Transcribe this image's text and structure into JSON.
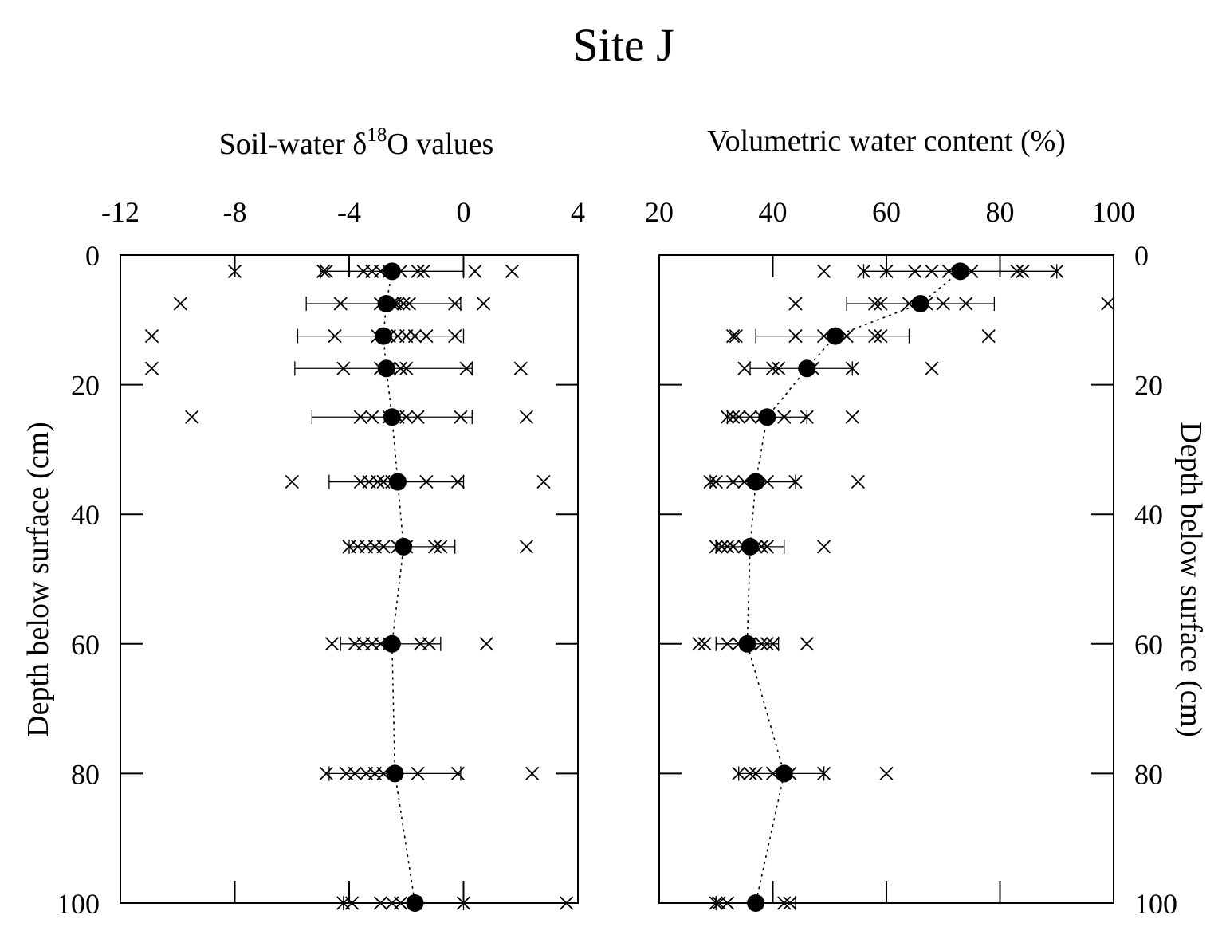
{
  "figure_title": "Site J",
  "chart_data": [
    {
      "type": "scatter",
      "title": "Soil-water δ18O values",
      "xlabel": "Soil-water δ18O values",
      "ylabel": "Depth below surface (cm)",
      "xlim": [
        -12,
        4
      ],
      "ylim": [
        0,
        100
      ],
      "y_inverted": true,
      "x_ticks": [
        "-12",
        "-8",
        "-4",
        "0",
        "4"
      ],
      "y_ticks": [
        "0",
        "20",
        "40",
        "60",
        "80",
        "100"
      ],
      "y_axis_side": "left",
      "depths": [
        2.5,
        7.5,
        12.5,
        17.5,
        25,
        35,
        45,
        60,
        80,
        100
      ],
      "individual_samples": [
        [
          -8.0,
          -4.9,
          -4.8,
          -3.5,
          -3.2,
          -2.9,
          -2.6,
          -2.2,
          -1.6,
          -1.4,
          0.4,
          1.7
        ],
        [
          -9.9,
          -4.3,
          -2.9,
          -2.7,
          -2.5,
          -2.4,
          -2.3,
          -2.1,
          -1.9,
          -0.3,
          0.7
        ],
        [
          -10.9,
          -4.5,
          -3.0,
          -2.6,
          -2.3,
          -2.0,
          -1.7,
          -1.3,
          -0.3
        ],
        [
          -10.9,
          -4.2,
          -2.9,
          -2.6,
          -2.2,
          -2.0,
          0.1,
          2.0
        ],
        [
          -9.5,
          -3.6,
          -3.2,
          -2.6,
          -2.3,
          -2.0,
          -1.6,
          -0.1,
          2.2
        ],
        [
          -6.0,
          -3.6,
          -3.3,
          -3.0,
          -2.8,
          -2.5,
          -1.3,
          -0.2,
          2.8
        ],
        [
          -4.0,
          -3.7,
          -3.4,
          -3.1,
          -2.8,
          -2.3,
          -2.0,
          -1.0,
          -0.8,
          2.2
        ],
        [
          -4.6,
          -3.8,
          -3.5,
          -3.2,
          -2.9,
          -2.6,
          -1.5,
          -1.2,
          0.8
        ],
        [
          -4.8,
          -4.1,
          -3.8,
          -3.4,
          -3.1,
          -2.8,
          -2.4,
          -1.6,
          -0.2,
          2.4
        ],
        [
          -4.2,
          -3.9,
          -2.9,
          -2.5,
          -2.2,
          -1.7,
          0.0,
          3.6
        ]
      ],
      "mean": [
        -2.5,
        -2.7,
        -2.8,
        -2.7,
        -2.5,
        -2.3,
        -2.1,
        -2.5,
        -2.4,
        -1.7
      ],
      "error_low": [
        -5.0,
        -5.5,
        -5.8,
        -5.9,
        -5.3,
        -4.7,
        -4.0,
        -4.3,
        -4.7,
        -4.2
      ],
      "error_high": [
        0.0,
        -0.1,
        0.0,
        0.3,
        0.3,
        0.0,
        -0.3,
        -0.8,
        -0.1,
        0.0
      ]
    },
    {
      "type": "scatter",
      "title": "Volumetric water content (%)",
      "xlabel": "Volumetric water content (%)",
      "ylabel": "Depth below surface (cm)",
      "xlim": [
        20,
        100
      ],
      "ylim": [
        0,
        100
      ],
      "y_inverted": true,
      "x_ticks": [
        "20",
        "40",
        "60",
        "80",
        "100"
      ],
      "y_ticks": [
        "0",
        "20",
        "40",
        "60",
        "80",
        "100"
      ],
      "y_axis_side": "right",
      "depths": [
        2.5,
        7.5,
        12.5,
        17.5,
        25,
        35,
        45,
        60,
        80,
        100
      ],
      "individual_samples": [
        [
          49,
          56,
          60,
          65,
          68,
          71,
          75,
          83,
          84,
          90
        ],
        [
          44,
          58,
          59,
          64,
          67,
          70,
          74,
          99
        ],
        [
          33,
          33.5,
          44,
          49,
          53,
          58,
          59,
          78
        ],
        [
          35,
          40,
          41,
          47,
          54,
          68
        ],
        [
          32,
          33,
          34,
          36,
          38,
          42,
          46,
          54
        ],
        [
          29,
          30,
          33,
          35,
          37,
          39,
          44,
          55
        ],
        [
          30,
          31,
          32,
          33,
          35,
          37,
          38,
          39,
          49
        ],
        [
          27,
          28,
          32,
          34,
          36,
          38,
          39,
          40,
          46
        ],
        [
          34,
          36,
          37,
          40,
          43,
          49,
          60
        ],
        [
          30,
          30.5,
          32,
          37,
          42,
          43
        ]
      ],
      "mean": [
        73,
        66,
        51,
        46,
        39,
        37,
        36,
        35.5,
        42,
        37
      ],
      "error_low": [
        56,
        53,
        37,
        36,
        32,
        29,
        30,
        30,
        34,
        30
      ],
      "error_high": [
        90,
        79,
        64,
        54,
        46,
        44,
        42,
        41,
        49,
        44
      ]
    }
  ]
}
